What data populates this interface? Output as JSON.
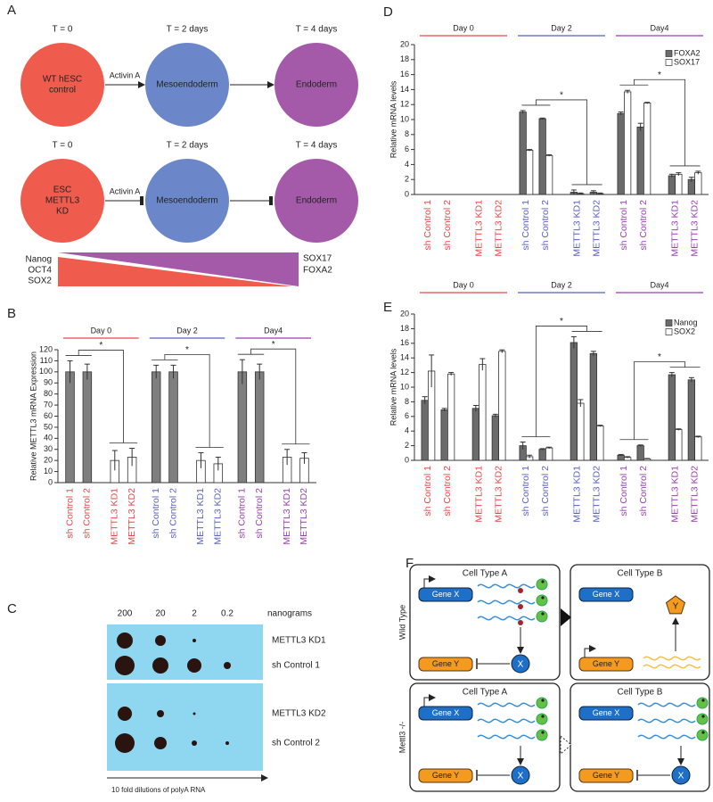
{
  "panel_labels": [
    "A",
    "B",
    "C",
    "D",
    "E",
    "F"
  ],
  "panel_a": {
    "rows": [
      {
        "times": [
          "T = 0",
          "T = 2 days",
          "T = 4 days"
        ],
        "nodes": [
          [
            "WT hESC",
            "control"
          ],
          [
            "Mesoendoderm"
          ],
          [
            "Endoderm"
          ]
        ],
        "arrow_label": "Activin A"
      },
      {
        "times": [
          "T = 0",
          "T = 2 days",
          "T = 4 days"
        ],
        "nodes": [
          [
            "ESC",
            "METTL3",
            "KD"
          ],
          [
            "Mesoendoderm"
          ],
          [
            "Endoderm"
          ]
        ],
        "arrow_label": "Activin A"
      }
    ],
    "gradient": {
      "left": [
        "Nanog",
        "OCT4",
        "SOX2"
      ],
      "right": [
        "SOX17",
        "FOXA2"
      ]
    }
  },
  "chart_data": [
    {
      "type": "bar",
      "ylabel": "Relative METTL3 mRNA Expression",
      "ylim": [
        0,
        120
      ],
      "yticks": [
        0,
        10,
        20,
        30,
        40,
        50,
        60,
        70,
        80,
        90,
        100,
        110,
        120
      ],
      "groups": [
        {
          "name": "Day 0",
          "color": "#e8474a",
          "annotation": "*"
        },
        {
          "name": "Day 2",
          "color": "#5a5fc4",
          "annotation": "*"
        },
        {
          "name": "Day4",
          "color": "#9a3fb3",
          "annotation": "*"
        }
      ],
      "categories": [
        "sh Control 1",
        "sh Control 2",
        "METTL3 KD1",
        "METTL3 KD2",
        "sh Control 1",
        "sh Control 2",
        "METTL3 KD1",
        "METTL3 KD2",
        "sh Control 1",
        "sh Control 2",
        "METTL3 KD1",
        "METTL3 KD2"
      ],
      "values": [
        100,
        100,
        20,
        23,
        100,
        100,
        20,
        17,
        100,
        100,
        23,
        22
      ],
      "errors": [
        10,
        7,
        9,
        8,
        6,
        6,
        7,
        6,
        11,
        7,
        7,
        5
      ],
      "colors": [
        "#7f7f7f",
        "#7f7f7f",
        "#ffffff",
        "#ffffff",
        "#7f7f7f",
        "#7f7f7f",
        "#ffffff",
        "#ffffff",
        "#7f7f7f",
        "#7f7f7f",
        "#ffffff",
        "#ffffff"
      ]
    },
    {
      "type": "bar",
      "ylabel": "Relative mRNA levels",
      "ylim": [
        0,
        20
      ],
      "yticks": [
        0,
        2,
        4,
        6,
        8,
        10,
        12,
        14,
        16,
        18,
        20
      ],
      "legend": "upper right",
      "groups": [
        {
          "name": "Day 0",
          "color": "#e8474a"
        },
        {
          "name": "Day 2",
          "color": "#5a5fc4",
          "annotation": "*"
        },
        {
          "name": "Day4",
          "color": "#9a3fb3",
          "annotation": "*"
        }
      ],
      "categories": [
        "sh Control 1",
        "sh Control 2",
        "METTL3 KD1",
        "METTL3 KD2",
        "sh Control 1",
        "sh Control 2",
        "METTL3 KD1",
        "METTL3 KD2",
        "sh Control 1",
        "sh Control 2",
        "METTL3 KD1",
        "METTL3 KD2"
      ],
      "series": [
        {
          "name": "FOXA2",
          "color": "#6b6b6b",
          "values": [
            null,
            null,
            null,
            null,
            11.0,
            10.1,
            0.3,
            0.3,
            10.8,
            9.0,
            2.5,
            2.0
          ],
          "errors": [
            null,
            null,
            null,
            null,
            0.2,
            0.1,
            0.3,
            0.2,
            0.2,
            0.5,
            0.2,
            0.3
          ]
        },
        {
          "name": "SOX17",
          "color": "#ffffff",
          "values": [
            null,
            null,
            null,
            null,
            5.9,
            5.2,
            0.1,
            0.1,
            13.7,
            12.2,
            2.7,
            2.9
          ],
          "errors": [
            null,
            null,
            null,
            null,
            0.1,
            0.1,
            0.1,
            0.1,
            0.2,
            0.1,
            0.2,
            0.2
          ]
        }
      ]
    },
    {
      "type": "bar",
      "ylabel": "Relative mRNA levels",
      "ylim": [
        0,
        20
      ],
      "yticks": [
        0,
        2,
        4,
        6,
        8,
        10,
        12,
        14,
        16,
        18,
        20
      ],
      "legend": "upper right",
      "groups": [
        {
          "name": "Day 0",
          "color": "#e8474a"
        },
        {
          "name": "Day 2",
          "color": "#5a5fc4",
          "annotation": "*"
        },
        {
          "name": "Day4",
          "color": "#9a3fb3",
          "annotation": "*"
        }
      ],
      "categories": [
        "sh Control 1",
        "sh Control 2",
        "METTL3 KD1",
        "METTL3 KD2",
        "sh Control 1",
        "sh Control 2",
        "METTL3 KD1",
        "METTL3 KD2",
        "sh Control 1",
        "sh Control 2",
        "METTL3 KD1",
        "METTL3 KD2"
      ],
      "series": [
        {
          "name": "Nanog",
          "color": "#6b6b6b",
          "values": [
            8.2,
            6.9,
            7.1,
            6.1,
            2.0,
            1.5,
            16.1,
            14.6,
            0.7,
            2.0,
            11.7,
            11.0
          ],
          "errors": [
            0.5,
            0.2,
            0.4,
            0.2,
            0.5,
            0.1,
            0.8,
            0.3,
            0.1,
            0.1,
            0.3,
            0.3
          ]
        },
        {
          "name": "SOX2",
          "color": "#ffffff",
          "values": [
            12.2,
            11.8,
            13.1,
            14.9,
            0.5,
            1.7,
            7.8,
            4.7,
            0.4,
            0.2,
            4.2,
            3.2
          ],
          "errors": [
            2.2,
            0.2,
            0.8,
            0.2,
            0.2,
            0.1,
            0.5,
            0.1,
            0.1,
            0.05,
            0.1,
            0.1
          ]
        }
      ]
    }
  ],
  "panel_c": {
    "doses": [
      "200",
      "20",
      "2",
      "0.2"
    ],
    "unit": "nanograms",
    "rows": [
      "METTL3 KD1",
      "sh Control 1",
      "METTL3 KD2",
      "sh Control 2"
    ],
    "footer": "10 fold dilutions of polyA RNA"
  },
  "panel_f": {
    "rows": [
      {
        "label": "Wild Type",
        "cells": [
          {
            "title": "Cell Type A",
            "genes": [
              "Gene X",
              "Gene Y"
            ],
            "protein": "X"
          },
          {
            "title": "Cell Type B",
            "genes": [
              "Gene X",
              "Gene Y"
            ],
            "protein": "Y"
          }
        ]
      },
      {
        "label": "Mettl3 -/-",
        "cells": [
          {
            "title": "Cell Type A",
            "genes": [
              "Gene X",
              "Gene Y"
            ],
            "protein": "X"
          },
          {
            "title": "Cell Type B",
            "genes": [
              "Gene X",
              "Gene Y"
            ],
            "protein": "X"
          }
        ]
      }
    ]
  }
}
